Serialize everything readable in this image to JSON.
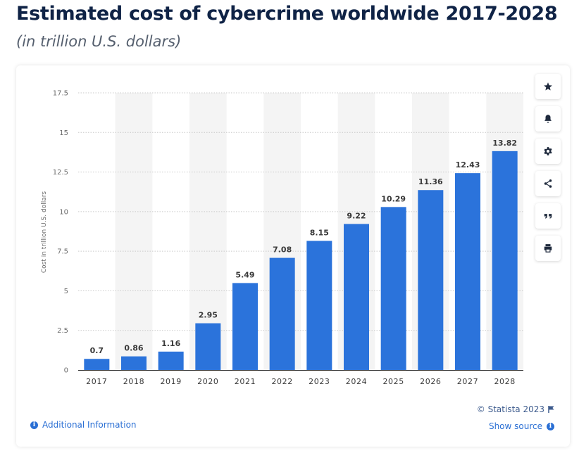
{
  "header": {
    "title": "Estimated cost of cybercrime worldwide 2017-2028",
    "subtitle": "(in trillion U.S. dollars)"
  },
  "toolbar": {
    "buttons": [
      "star-icon",
      "bell-icon",
      "gear-icon",
      "share-icon",
      "quote-icon",
      "print-icon"
    ]
  },
  "footer": {
    "credit": "© Statista 2023",
    "show_source": "Show source",
    "additional_info": "Additional Information"
  },
  "colors": {
    "bar": "#2b73db",
    "band": "#f4f4f4",
    "grid": "#c9c9c9",
    "accent": "#2a6fd4",
    "title": "#0f2346"
  },
  "chart_data": {
    "type": "bar",
    "categories": [
      "2017",
      "2018",
      "2019",
      "2020",
      "2021",
      "2022",
      "2023",
      "2024",
      "2025",
      "2026",
      "2027",
      "2028"
    ],
    "values": [
      0.7,
      0.86,
      1.16,
      2.95,
      5.49,
      7.08,
      8.15,
      9.22,
      10.29,
      11.36,
      12.43,
      13.82
    ],
    "data_labels": [
      "0.7",
      "0.86",
      "1.16",
      "2.95",
      "5.49",
      "7.08",
      "8.15",
      "9.22",
      "10.29",
      "11.36",
      "12.43",
      "13.82"
    ],
    "ylabel": "Cost in trillion U.S. dollars",
    "xlabel": "",
    "ylim": [
      0,
      17.5
    ],
    "yticks": [
      "0",
      "2.5",
      "5",
      "7.5",
      "10",
      "12.5",
      "15",
      "17.5"
    ],
    "grid": true
  }
}
